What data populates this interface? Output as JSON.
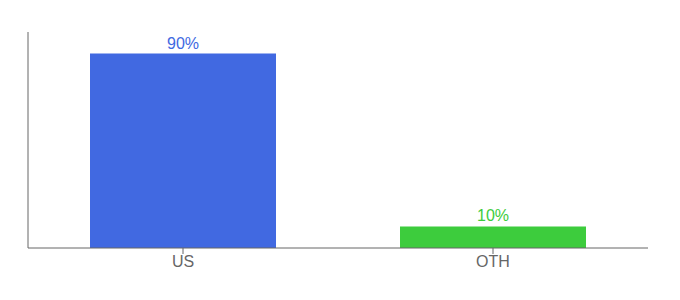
{
  "chart_data": {
    "type": "bar",
    "categories": [
      "US",
      "OTH"
    ],
    "values": [
      90,
      10
    ],
    "value_labels": [
      "90%",
      "10%"
    ],
    "colors": [
      "#4169e1",
      "#3dcc3d"
    ],
    "ylim": [
      0,
      100
    ],
    "data_labels": true,
    "tick_labels": "x",
    "grid": false
  }
}
